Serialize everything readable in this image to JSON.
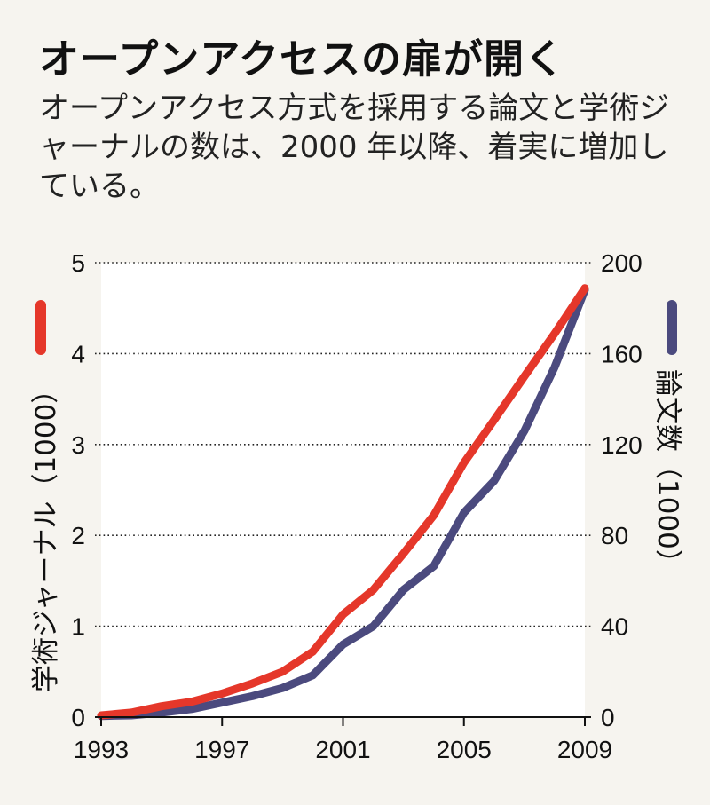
{
  "header": {
    "title": "オープンアクセスの扉が開く",
    "subtitle": "オープンアクセス方式を採用する論文と学術ジャーナルの数は、2000 年以降、着実に増加している。"
  },
  "chart_data": {
    "type": "line",
    "x": [
      1993,
      1994,
      1995,
      1996,
      1997,
      1998,
      1999,
      2000,
      2001,
      2002,
      2003,
      2004,
      2005,
      2006,
      2007,
      2008,
      2009
    ],
    "xticks": [
      "1993",
      "1997",
      "2001",
      "2005",
      "2009"
    ],
    "xlim": [
      1993,
      2009
    ],
    "left_axis": {
      "label": "学術ジャーナル（1000）",
      "ticks": [
        "0",
        "1",
        "2",
        "3",
        "4",
        "5"
      ],
      "ylim": [
        0,
        5
      ]
    },
    "right_axis": {
      "label": "論文数（1000）",
      "ticks": [
        "0",
        "40",
        "80",
        "120",
        "160",
        "200"
      ],
      "ylim": [
        0,
        200
      ]
    },
    "series": [
      {
        "name": "学術ジャーナル",
        "axis": "left",
        "color": "#e5372a",
        "values": [
          0.02,
          0.05,
          0.12,
          0.17,
          0.26,
          0.37,
          0.5,
          0.72,
          1.13,
          1.4,
          1.8,
          2.22,
          2.8,
          3.27,
          3.75,
          4.22,
          4.72
        ]
      },
      {
        "name": "論文数",
        "axis": "right",
        "color": "#4b4a7e",
        "values": [
          0.5,
          0.8,
          2,
          3.6,
          6.4,
          9.2,
          12.8,
          18.4,
          32,
          40,
          56,
          66.4,
          90,
          104,
          126,
          154,
          188
        ]
      }
    ],
    "grid": true
  }
}
